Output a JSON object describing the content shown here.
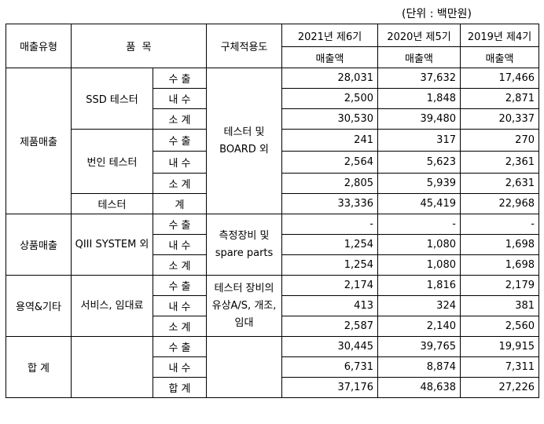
{
  "unit_note": "(단위 : 백만원)",
  "header": {
    "type": "매출유형",
    "item": "품  목",
    "usage": "구체적용도",
    "years": [
      "2021년 제6기",
      "2020년 제5기",
      "2019년 제4기"
    ],
    "amount": "매출액"
  },
  "sub": {
    "export": "수 출",
    "domestic": "내 수",
    "subtotal": "소 계",
    "total_short": "계",
    "total": "합 계"
  },
  "groups": {
    "product": "제품매출",
    "goods": "상품매출",
    "service": "용역&기타",
    "sum": "합 계"
  },
  "items": {
    "ssd": "SSD 테스터",
    "burnin": "번인 테스터",
    "tester": "테스터",
    "qiii": "QIII SYSTEM 외",
    "service": "서비스, 임대료"
  },
  "usages": {
    "product": "테스터 및 BOARD 외",
    "goods": "측정장비 및 spare parts",
    "service": "테스터 장비의 유상A/S, 개조, 임대"
  },
  "values": {
    "ssd_export": [
      "28,031",
      "37,632",
      "17,466"
    ],
    "ssd_domestic": [
      "2,500",
      "1,848",
      "2,871"
    ],
    "ssd_subtotal": [
      "30,530",
      "39,480",
      "20,337"
    ],
    "burnin_export": [
      "241",
      "317",
      "270"
    ],
    "burnin_domestic": [
      "2,564",
      "5,623",
      "2,361"
    ],
    "burnin_subtotal": [
      "2,805",
      "5,939",
      "2,631"
    ],
    "tester_total": [
      "33,336",
      "45,419",
      "22,968"
    ],
    "qiii_export": [
      "-",
      "-",
      "-"
    ],
    "qiii_domestic": [
      "1,254",
      "1,080",
      "1,698"
    ],
    "qiii_subtotal": [
      "1,254",
      "1,080",
      "1,698"
    ],
    "service_export": [
      "2,174",
      "1,816",
      "2,179"
    ],
    "service_domestic": [
      "413",
      "324",
      "381"
    ],
    "service_subtotal": [
      "2,587",
      "2,140",
      "2,560"
    ],
    "sum_export": [
      "30,445",
      "39,765",
      "19,915"
    ],
    "sum_domestic": [
      "6,731",
      "8,874",
      "7,311"
    ],
    "sum_total": [
      "37,176",
      "48,638",
      "27,226"
    ]
  }
}
